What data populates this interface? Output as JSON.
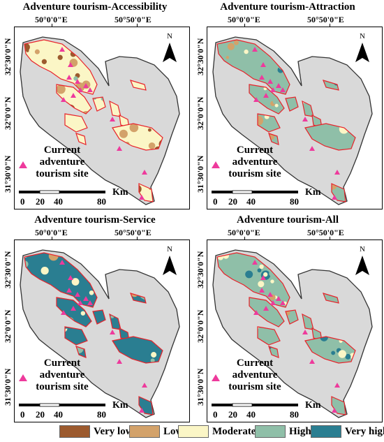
{
  "panels": [
    {
      "title": "Adventure tourism-Accessibility",
      "variant": "accessibility"
    },
    {
      "title": "Adventure tourism-Attraction",
      "variant": "attraction"
    },
    {
      "title": "Adventure tourism-Service",
      "variant": "service"
    },
    {
      "title": "Adventure tourism-All",
      "variant": "all"
    }
  ],
  "lon_labels": [
    "50°0'0\"E",
    "50°50'0\"E"
  ],
  "lat_labels": [
    "32°30'0\"N",
    "32°0'0\"N",
    "31°30'0\"N"
  ],
  "north_label": "N",
  "site_legend": {
    "line1": "Current",
    "line2": "adventure",
    "line3": "tourism site",
    "color": "#ee3a9c"
  },
  "scalebar": {
    "unit": "Km",
    "ticks": [
      "0",
      "20",
      "40",
      "80"
    ]
  },
  "legend": [
    {
      "label": "Very low",
      "color": "#9c5a2e"
    },
    {
      "label": "Low",
      "color": "#d3a26a"
    },
    {
      "label": "Moderate",
      "color": "#fbf6c6"
    },
    {
      "label": "High",
      "color": "#8fbfa8"
    },
    {
      "label": "Very high",
      "color": "#2a7e91"
    }
  ],
  "colors": {
    "province": "#d9d9d9",
    "boundary": "#e8222a",
    "site": "#ee3a9c"
  }
}
